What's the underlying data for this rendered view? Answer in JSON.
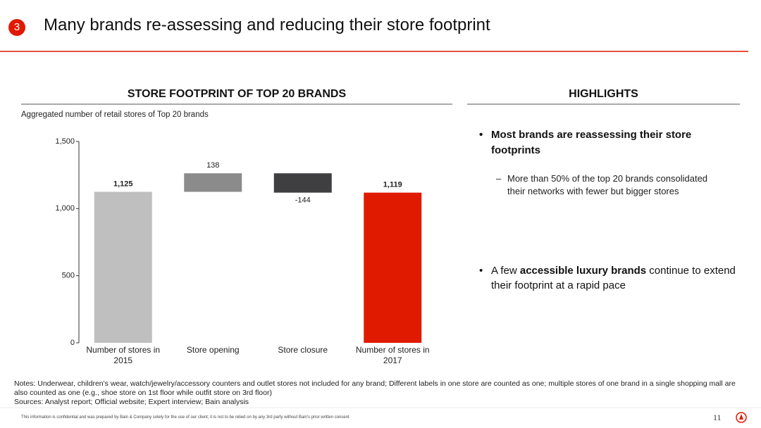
{
  "slide_number": "3",
  "header_title": "Many brands re-assessing and reducing their store footprint",
  "chart_data": {
    "type": "waterfall",
    "title": "STORE FOOTPRINT OF TOP 20 BRANDS",
    "subtitle": "Aggregated number of retail stores of Top 20 brands",
    "categories": [
      "Number of stores in 2015",
      "Store opening",
      "Store closure",
      "Number of stores in 2017"
    ],
    "values": [
      1125,
      138,
      -144,
      1119
    ],
    "value_labels": [
      "1,125",
      "138",
      "-144",
      "1,119"
    ],
    "colors": [
      "#c0bfc0",
      "#8c8b8c",
      "#3f3e40",
      "#e01a00"
    ],
    "ylim": [
      0,
      1500
    ],
    "yticks": [
      0,
      500,
      {
        "value": 1000,
        "label": "1,000"
      },
      {
        "value": 1500,
        "label": "1,500"
      }
    ]
  },
  "highlights": {
    "title": "HIGHLIGHTS",
    "bullet1": "Most brands are reassessing their store footprints",
    "sub_bullet1": "More than 50% of the top 20 brands consolidated their networks with fewer but bigger stores",
    "bullet2": [
      "A few",
      "accessible luxury brands",
      "continue to extend their footprint at a rapid pace"
    ]
  },
  "notes": "Notes: Underwear, children's wear, watch/jewelry/accessory counters and outlet stores not included for any brand; Different labels in one store are counted as one; multiple stores of one brand in a single shopping mall are also counted as one (e.g., shoe store on 1st floor while outfit store on 3rd floor)",
  "sources": "Sources: Analyst report; Official website; Expert interview; Bain analysis",
  "footer": "This information is confidential and was prepared by Bain & Company solely for the use of our client; it is not to be relied on by any 3rd party without Bain's prior written consent",
  "page_number": "11"
}
